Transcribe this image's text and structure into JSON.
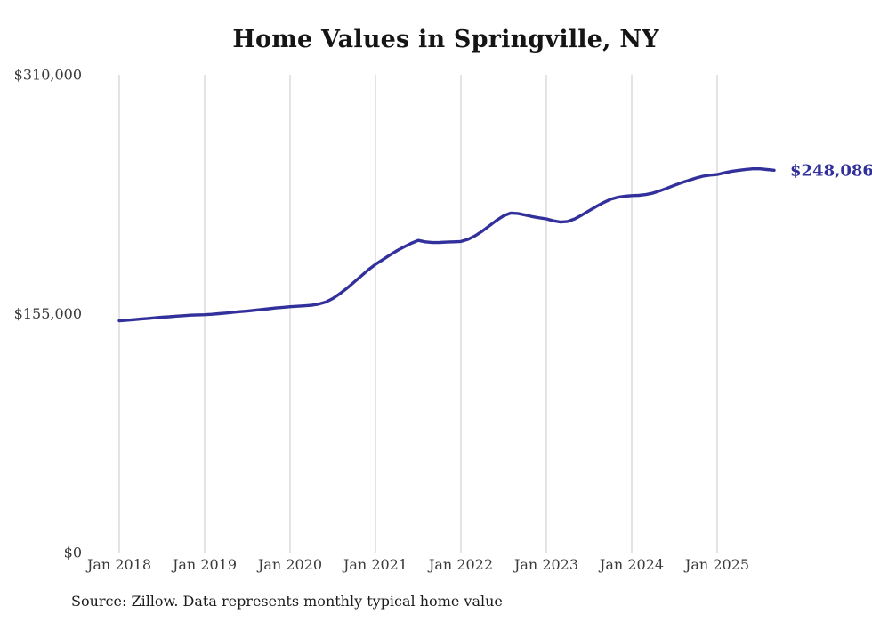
{
  "chart_data": {
    "type": "line",
    "title": "Home Values in Springville, NY",
    "source_note": "Source: Zillow. Data represents monthly typical home value",
    "series_name": "Monthly typical home value",
    "x": [
      "2018-01",
      "2018-02",
      "2018-03",
      "2018-04",
      "2018-05",
      "2018-06",
      "2018-07",
      "2018-08",
      "2018-09",
      "2018-10",
      "2018-11",
      "2018-12",
      "2019-01",
      "2019-02",
      "2019-03",
      "2019-04",
      "2019-05",
      "2019-06",
      "2019-07",
      "2019-08",
      "2019-09",
      "2019-10",
      "2019-11",
      "2019-12",
      "2020-01",
      "2020-02",
      "2020-03",
      "2020-04",
      "2020-05",
      "2020-06",
      "2020-07",
      "2020-08",
      "2020-09",
      "2020-10",
      "2020-11",
      "2020-12",
      "2021-01",
      "2021-02",
      "2021-03",
      "2021-04",
      "2021-05",
      "2021-06",
      "2021-07",
      "2021-08",
      "2021-09",
      "2021-10",
      "2021-11",
      "2021-12",
      "2022-01",
      "2022-02",
      "2022-03",
      "2022-04",
      "2022-05",
      "2022-06",
      "2022-07",
      "2022-08",
      "2022-09",
      "2022-10",
      "2022-11",
      "2022-12",
      "2023-01",
      "2023-02",
      "2023-03",
      "2023-04",
      "2023-05",
      "2023-06",
      "2023-07",
      "2023-08",
      "2023-09",
      "2023-10",
      "2023-11",
      "2023-12",
      "2024-01",
      "2024-02",
      "2024-03",
      "2024-04",
      "2024-05",
      "2024-06",
      "2024-07",
      "2024-08",
      "2024-09",
      "2024-10",
      "2024-11",
      "2024-12",
      "2025-01",
      "2025-02",
      "2025-03",
      "2025-04",
      "2025-05",
      "2025-06",
      "2025-07",
      "2025-08",
      "2025-09"
    ],
    "values": [
      150400,
      150700,
      151100,
      151500,
      151900,
      152300,
      152700,
      153000,
      153400,
      153700,
      154000,
      154200,
      154300,
      154600,
      155000,
      155400,
      155900,
      156300,
      156700,
      157200,
      157700,
      158200,
      158700,
      159100,
      159500,
      159800,
      160100,
      160400,
      161200,
      162500,
      164800,
      168000,
      171500,
      175500,
      179500,
      183500,
      187000,
      190000,
      193000,
      195800,
      198300,
      200600,
      202500,
      201600,
      201100,
      201200,
      201400,
      201600,
      201800,
      203200,
      205500,
      208500,
      212000,
      215500,
      218500,
      220300,
      220000,
      219000,
      218000,
      217200,
      216500,
      215200,
      214400,
      214800,
      216500,
      219000,
      221800,
      224500,
      227000,
      229200,
      230500,
      231200,
      231600,
      231800,
      232300,
      233300,
      234800,
      236500,
      238300,
      240000,
      241500,
      243000,
      244200,
      244900,
      245300,
      246400,
      247300,
      248000,
      248600,
      249000,
      249000,
      248500,
      248086
    ],
    "latest_value": 248086,
    "latest_value_label": "$248,086",
    "x_tick_labels": [
      "Jan 2018",
      "Jan 2019",
      "Jan 2020",
      "Jan 2021",
      "Jan 2022",
      "Jan 2023",
      "Jan 2024",
      "Jan 2025"
    ],
    "x_tick_month_interval": 12,
    "y_ticks": [
      {
        "value": 0,
        "label": "$0"
      },
      {
        "value": 155000,
        "label": "$155,000"
      },
      {
        "value": 310000,
        "label": "$310,000"
      }
    ],
    "ylim": [
      0,
      310000
    ],
    "grid": "vertical-only",
    "legend": "none",
    "line_color": "#32309b",
    "end_label_color": "#32309b",
    "grid_color": "#c9c9c9",
    "tick_label_color": "#3a3a3a",
    "title_color": "#151515"
  }
}
